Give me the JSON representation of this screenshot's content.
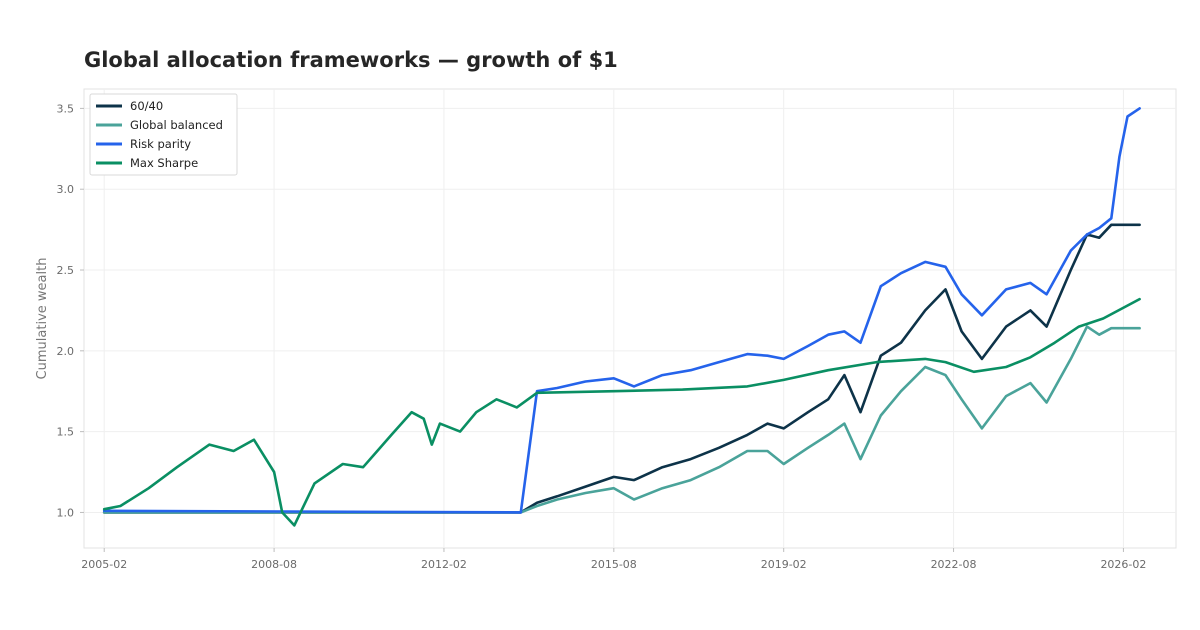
{
  "chart_data": {
    "type": "line",
    "title": "Global allocation frameworks — growth of $1",
    "xlabel": "",
    "ylabel": "Cumulative wealth",
    "x_ticks": [
      "2005-02",
      "2008-08",
      "2012-02",
      "2015-08",
      "2019-02",
      "2022-08",
      "2026-02"
    ],
    "y_ticks": [
      1.0,
      1.5,
      2.0,
      2.5,
      3.0,
      3.5
    ],
    "xlim": [
      "2004-09",
      "2027-03"
    ],
    "ylim": [
      0.78,
      3.62
    ],
    "grid": true,
    "legend": "top-left",
    "series": [
      {
        "name": "60/40",
        "color": "#0d3349",
        "points": [
          [
            "2005-02",
            1.0
          ],
          [
            "2013-09",
            1.0
          ],
          [
            "2014-01",
            1.06
          ],
          [
            "2014-06",
            1.1
          ],
          [
            "2015-01",
            1.16
          ],
          [
            "2015-08",
            1.22
          ],
          [
            "2016-01",
            1.2
          ],
          [
            "2016-08",
            1.28
          ],
          [
            "2017-03",
            1.33
          ],
          [
            "2017-10",
            1.4
          ],
          [
            "2018-05",
            1.48
          ],
          [
            "2018-10",
            1.55
          ],
          [
            "2019-02",
            1.52
          ],
          [
            "2019-08",
            1.62
          ],
          [
            "2020-01",
            1.7
          ],
          [
            "2020-05",
            1.85
          ],
          [
            "2020-09",
            1.62
          ],
          [
            "2021-02",
            1.97
          ],
          [
            "2021-07",
            2.05
          ],
          [
            "2022-01",
            2.25
          ],
          [
            "2022-06",
            2.38
          ],
          [
            "2022-10",
            2.12
          ],
          [
            "2023-03",
            1.95
          ],
          [
            "2023-09",
            2.15
          ],
          [
            "2024-03",
            2.25
          ],
          [
            "2024-07",
            2.15
          ],
          [
            "2025-01",
            2.5
          ],
          [
            "2025-05",
            2.72
          ],
          [
            "2025-08",
            2.7
          ],
          [
            "2025-11",
            2.78
          ],
          [
            "2026-06",
            2.78
          ]
        ]
      },
      {
        "name": "Global balanced",
        "color": "#4aa39a",
        "points": [
          [
            "2005-02",
            1.0
          ],
          [
            "2013-09",
            1.0
          ],
          [
            "2014-01",
            1.04
          ],
          [
            "2014-06",
            1.08
          ],
          [
            "2015-01",
            1.12
          ],
          [
            "2015-08",
            1.15
          ],
          [
            "2016-01",
            1.08
          ],
          [
            "2016-08",
            1.15
          ],
          [
            "2017-03",
            1.2
          ],
          [
            "2017-10",
            1.28
          ],
          [
            "2018-05",
            1.38
          ],
          [
            "2018-10",
            1.38
          ],
          [
            "2019-02",
            1.3
          ],
          [
            "2019-08",
            1.4
          ],
          [
            "2020-01",
            1.48
          ],
          [
            "2020-05",
            1.55
          ],
          [
            "2020-09",
            1.33
          ],
          [
            "2021-02",
            1.6
          ],
          [
            "2021-07",
            1.75
          ],
          [
            "2022-01",
            1.9
          ],
          [
            "2022-06",
            1.85
          ],
          [
            "2022-10",
            1.7
          ],
          [
            "2023-03",
            1.52
          ],
          [
            "2023-09",
            1.72
          ],
          [
            "2024-03",
            1.8
          ],
          [
            "2024-07",
            1.68
          ],
          [
            "2025-01",
            1.95
          ],
          [
            "2025-05",
            2.15
          ],
          [
            "2025-08",
            2.1
          ],
          [
            "2025-11",
            2.14
          ],
          [
            "2026-06",
            2.14
          ]
        ]
      },
      {
        "name": "Risk parity",
        "color": "#2563eb",
        "points": [
          [
            "2005-02",
            1.01
          ],
          [
            "2013-09",
            1.0
          ],
          [
            "2014-01",
            1.75
          ],
          [
            "2014-06",
            1.77
          ],
          [
            "2015-01",
            1.81
          ],
          [
            "2015-08",
            1.83
          ],
          [
            "2016-01",
            1.78
          ],
          [
            "2016-08",
            1.85
          ],
          [
            "2017-03",
            1.88
          ],
          [
            "2017-10",
            1.93
          ],
          [
            "2018-05",
            1.98
          ],
          [
            "2018-10",
            1.97
          ],
          [
            "2019-02",
            1.95
          ],
          [
            "2019-08",
            2.03
          ],
          [
            "2020-01",
            2.1
          ],
          [
            "2020-05",
            2.12
          ],
          [
            "2020-09",
            2.05
          ],
          [
            "2021-02",
            2.4
          ],
          [
            "2021-07",
            2.48
          ],
          [
            "2022-01",
            2.55
          ],
          [
            "2022-06",
            2.52
          ],
          [
            "2022-10",
            2.35
          ],
          [
            "2023-03",
            2.22
          ],
          [
            "2023-09",
            2.38
          ],
          [
            "2024-03",
            2.42
          ],
          [
            "2024-07",
            2.35
          ],
          [
            "2025-01",
            2.62
          ],
          [
            "2025-05",
            2.72
          ],
          [
            "2025-08",
            2.76
          ],
          [
            "2025-11",
            2.82
          ],
          [
            "2026-01",
            3.2
          ],
          [
            "2026-03",
            3.45
          ],
          [
            "2026-06",
            3.5
          ]
        ]
      },
      {
        "name": "Max Sharpe",
        "color": "#0a8f63",
        "points": [
          [
            "2005-02",
            1.02
          ],
          [
            "2005-06",
            1.04
          ],
          [
            "2006-01",
            1.15
          ],
          [
            "2006-08",
            1.28
          ],
          [
            "2007-04",
            1.42
          ],
          [
            "2007-10",
            1.38
          ],
          [
            "2008-03",
            1.45
          ],
          [
            "2008-08",
            1.25
          ],
          [
            "2008-10",
            1.0
          ],
          [
            "2009-01",
            0.92
          ],
          [
            "2009-06",
            1.18
          ],
          [
            "2010-01",
            1.3
          ],
          [
            "2010-06",
            1.28
          ],
          [
            "2011-01",
            1.48
          ],
          [
            "2011-06",
            1.62
          ],
          [
            "2011-09",
            1.58
          ],
          [
            "2011-11",
            1.42
          ],
          [
            "2012-01",
            1.55
          ],
          [
            "2012-06",
            1.5
          ],
          [
            "2012-10",
            1.62
          ],
          [
            "2013-03",
            1.7
          ],
          [
            "2013-08",
            1.65
          ],
          [
            "2014-01",
            1.74
          ],
          [
            "2015-08",
            1.75
          ],
          [
            "2017-01",
            1.76
          ],
          [
            "2018-05",
            1.78
          ],
          [
            "2019-02",
            1.82
          ],
          [
            "2020-01",
            1.88
          ],
          [
            "2021-01",
            1.93
          ],
          [
            "2022-01",
            1.95
          ],
          [
            "2022-06",
            1.93
          ],
          [
            "2023-01",
            1.87
          ],
          [
            "2023-09",
            1.9
          ],
          [
            "2024-03",
            1.96
          ],
          [
            "2024-09",
            2.05
          ],
          [
            "2025-03",
            2.15
          ],
          [
            "2025-09",
            2.2
          ],
          [
            "2026-06",
            2.32
          ]
        ]
      }
    ]
  }
}
